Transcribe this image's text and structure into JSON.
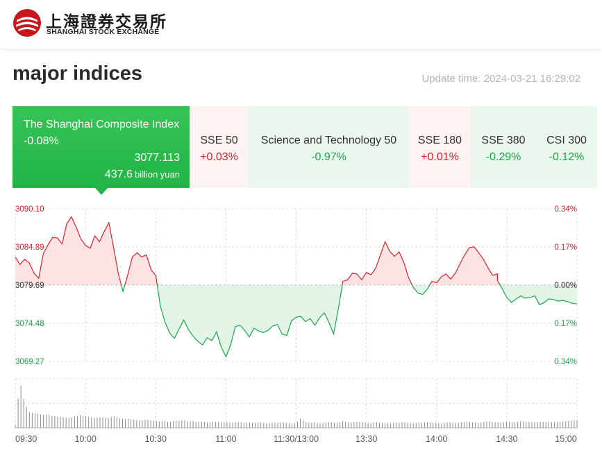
{
  "header": {
    "logo_cn": "上海證券交易所",
    "logo_en": "SHANGHAI STOCK EXCHANGE",
    "brand_color": "#c8161d"
  },
  "title": "major indices",
  "update_time": "Update time: 2024-03-21 16:29:02",
  "tabs": [
    {
      "name": "The Shanghai Composite Index",
      "pct": "-0.08%",
      "price": "3077.113",
      "turnover": "437.6",
      "turnover_unit": "billion yuan",
      "state": "active"
    },
    {
      "name": "SSE 50",
      "pct": "+0.03%",
      "state": "up"
    },
    {
      "name": "Science and Technology 50",
      "pct": "-0.97%",
      "state": "down"
    },
    {
      "name": "SSE 180",
      "pct": "+0.01%",
      "state": "up"
    },
    {
      "name": "SSE 380",
      "pct": "-0.29%",
      "state": "down"
    },
    {
      "name": "CSI 300",
      "pct": "-0.12%",
      "state": "down"
    }
  ],
  "colors": {
    "up": "#e0202a",
    "down": "#1aa64a",
    "up_fill": "#fbe3e3",
    "down_fill": "#e3f5e6"
  },
  "chart_data": {
    "type": "line",
    "baseline": 3079.69,
    "ylim": [
      3069.27,
      3090.1
    ],
    "left_ticks": [
      "3090.10",
      "3084.89",
      "3079.69",
      "3074.48",
      "3069.27"
    ],
    "right_ticks": [
      "0.34%",
      "0.17%",
      "0.00%",
      "0.17%",
      "0.34%"
    ],
    "x_labels": [
      "09:30",
      "10:00",
      "10:30",
      "11:00",
      "11:30/13:00",
      "13:30",
      "14:00",
      "14:30",
      "15:00"
    ],
    "x_minutes": [
      0,
      30,
      60,
      90,
      120,
      150,
      180,
      210,
      240
    ],
    "series": [
      {
        "x": [
          0,
          2,
          4,
          6,
          8,
          10,
          12,
          14,
          16,
          18,
          20,
          22,
          24,
          26,
          28,
          30,
          32,
          34,
          36,
          38,
          40,
          42,
          44,
          46,
          48,
          50,
          52,
          54,
          56,
          58,
          60,
          62,
          64,
          66,
          68,
          70,
          72,
          74,
          76,
          78,
          80,
          82,
          84,
          86,
          88,
          90,
          92,
          94,
          96,
          98,
          100,
          102,
          104,
          106,
          108,
          110,
          112,
          114,
          116,
          118,
          120,
          122,
          124,
          126,
          128,
          130,
          132,
          134,
          136,
          138,
          140,
          142,
          144,
          146,
          148,
          150,
          152,
          154,
          156,
          158,
          160,
          162,
          164,
          166,
          168,
          170,
          172,
          174,
          176,
          178,
          180,
          182,
          184,
          186,
          188,
          190,
          192,
          194,
          196,
          198,
          200,
          202,
          204,
          206,
          206,
          208,
          210,
          212,
          214,
          216,
          218,
          220,
          222,
          224,
          226,
          228,
          230,
          232,
          234,
          236,
          238,
          240
        ],
        "values": [
          3083.5,
          3082.5,
          3083.2,
          3082.7,
          3081.3,
          3080.6,
          3084.0,
          3085.2,
          3086.2,
          3086.1,
          3085.3,
          3088.1,
          3089.0,
          3087.6,
          3086.0,
          3085.1,
          3084.7,
          3086.4,
          3085.6,
          3087.0,
          3088.2,
          3084.8,
          3081.3,
          3078.8,
          3081.0,
          3083.5,
          3084.1,
          3083.5,
          3083.8,
          3081.8,
          3081.0,
          3076.8,
          3074.6,
          3073.1,
          3072.4,
          3073.7,
          3074.9,
          3073.6,
          3072.7,
          3072.0,
          3071.5,
          3072.5,
          3072.1,
          3073.3,
          3071.2,
          3069.9,
          3071.5,
          3074.0,
          3074.2,
          3073.5,
          3072.6,
          3073.8,
          3073.4,
          3073.2,
          3073.5,
          3074.1,
          3074.3,
          3073.0,
          3072.8,
          3074.8,
          3075.3,
          3075.4,
          3074.7,
          3075.1,
          3074.2,
          3075.2,
          3075.9,
          3074.6,
          3073.0,
          3076.4,
          3080.2,
          3080.4,
          3081.3,
          3081.2,
          3080.4,
          3081.4,
          3081.1,
          3082.0,
          3083.8,
          3085.6,
          3084.3,
          3083.6,
          3084.2,
          3082.8,
          3080.7,
          3079.4,
          3078.6,
          3078.4,
          3079.1,
          3080.2,
          3080.0,
          3080.8,
          3081.2,
          3080.5,
          3081.3,
          3082.6,
          3083.8,
          3084.8,
          3084.9,
          3084.1,
          3083.2,
          3082.0,
          3081.0,
          3081.2,
          3080.3,
          3079.2,
          3078.0,
          3077.3,
          3077.8,
          3078.2,
          3077.9,
          3078.0,
          3078.2,
          3077.0,
          3077.3,
          3077.8,
          3077.7,
          3077.5,
          3077.6,
          3077.4,
          3077.2,
          3077.1
        ],
        "volumes": [
          0.06,
          0.95,
          0.5,
          0.32,
          0.3,
          0.28,
          0.26,
          0.28,
          0.24,
          0.23,
          0.22,
          0.2,
          0.21,
          0.24,
          0.26,
          0.24,
          0.22,
          0.2,
          0.22,
          0.21,
          0.2,
          0.24,
          0.2,
          0.18,
          0.19,
          0.17,
          0.16,
          0.15,
          0.17,
          0.15,
          0.14,
          0.13,
          0.14,
          0.12,
          0.15,
          0.14,
          0.16,
          0.13,
          0.14,
          0.12,
          0.13,
          0.11,
          0.12,
          0.13,
          0.11,
          0.12,
          0.1,
          0.11,
          0.12,
          0.1,
          0.11,
          0.1,
          0.12,
          0.1,
          0.09,
          0.11,
          0.1,
          0.12,
          0.1,
          0.09,
          0.1,
          0.2,
          0.12,
          0.1,
          0.11,
          0.09,
          0.1,
          0.12,
          0.11,
          0.1,
          0.14,
          0.12,
          0.11,
          0.13,
          0.12,
          0.11,
          0.1,
          0.12,
          0.11,
          0.1,
          0.09,
          0.11,
          0.1,
          0.12,
          0.1,
          0.09,
          0.11,
          0.1,
          0.12,
          0.11,
          0.1,
          0.09,
          0.11,
          0.12,
          0.1,
          0.11,
          0.13,
          0.12,
          0.11,
          0.1,
          0.12,
          0.14,
          0.12,
          0.11,
          0.11,
          0.13,
          0.12,
          0.11,
          0.14,
          0.13,
          0.12,
          0.11,
          0.12,
          0.13,
          0.12,
          0.11,
          0.12,
          0.13,
          0.14,
          0.15,
          0.16,
          0.35
        ]
      }
    ]
  }
}
